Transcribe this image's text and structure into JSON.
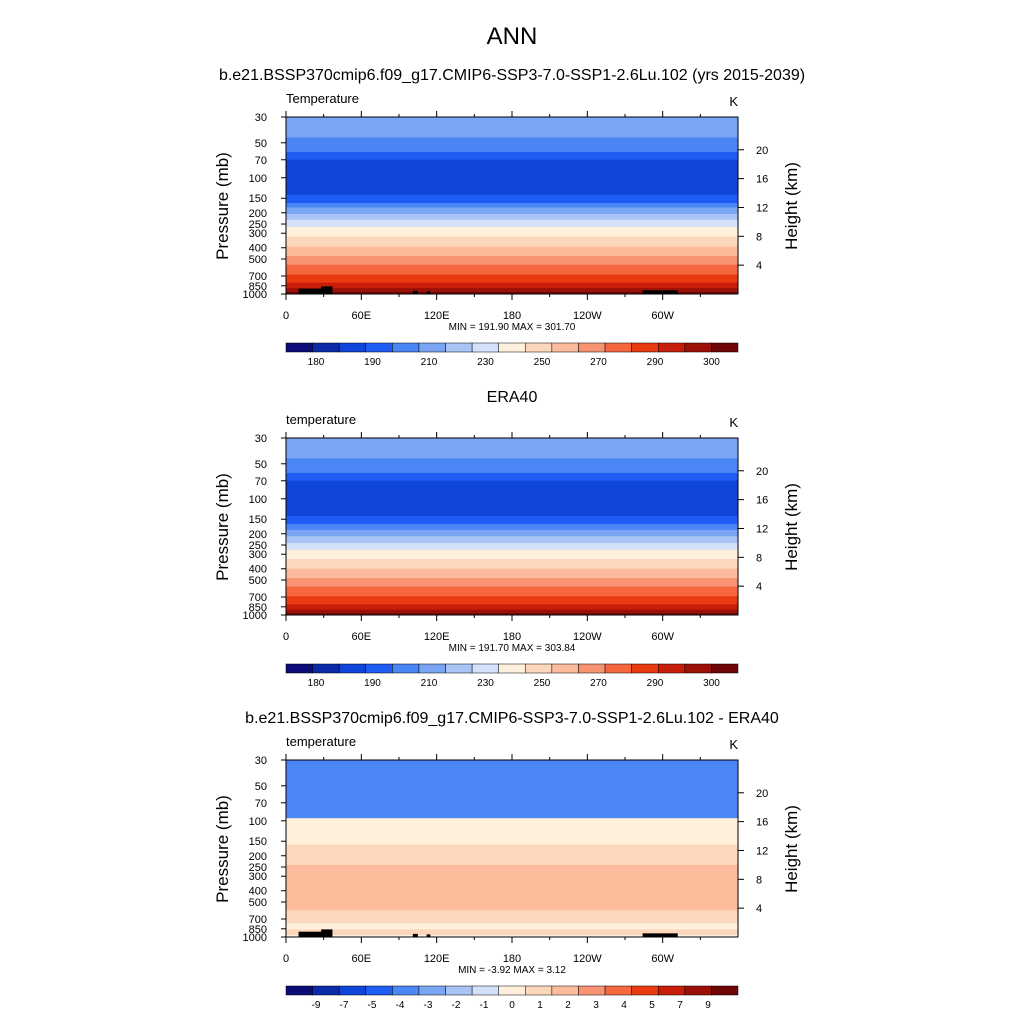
{
  "figure": {
    "title": "ANN",
    "subtitle": "b.e21.BSSP370cmip6.f09_g17.CMIP6-SSP3-7.0-SSP1-2.6Lu.102 (yrs 2015-2039)"
  },
  "chart_data": [
    {
      "type": "heatmap",
      "panel_title": "",
      "left_label": "Temperature",
      "units": "K",
      "ylabel": "Pressure (mb)",
      "ylabel_right": "Height (km)",
      "x_ticks": [
        "0",
        "60E",
        "120E",
        "180",
        "120W",
        "60W"
      ],
      "x_tick_values": [
        0,
        60,
        120,
        180,
        240,
        300
      ],
      "xlim": [
        0,
        360
      ],
      "y_ticks": [
        "30",
        "50",
        "70",
        "100",
        "150",
        "200",
        "250",
        "300",
        "400",
        "500",
        "700",
        "850",
        "1000"
      ],
      "y_tick_values": [
        30,
        50,
        70,
        100,
        150,
        200,
        250,
        300,
        400,
        500,
        700,
        850,
        1000
      ],
      "ylim": [
        1000,
        30
      ],
      "height_ticks": [
        "20",
        "16",
        "12",
        "8",
        "4"
      ],
      "height_values": [
        20,
        16,
        12,
        8,
        4
      ],
      "stats": "MIN = 191.90  MAX = 301.70",
      "colorbar_labels": [
        "180",
        "190",
        "210",
        "230",
        "250",
        "270",
        "290",
        "300"
      ],
      "colorbar_colors": [
        "#0c0c78",
        "#0b2ba8",
        "#0f45d8",
        "#1f5cf3",
        "#4a86f4",
        "#7aa5f2",
        "#a9c4f4",
        "#d3e2fa",
        "#fff0dc",
        "#fdd7bc",
        "#fcbc9c",
        "#f99473",
        "#f5683f",
        "#e93b0f",
        "#c71d09",
        "#9b1108",
        "#6f0707"
      ],
      "levels": [
        {
          "p": 30,
          "c": 5
        },
        {
          "p": 45,
          "c": 4
        },
        {
          "p": 60,
          "c": 3
        },
        {
          "p": 70,
          "c": 2
        },
        {
          "p": 115,
          "c": 2
        },
        {
          "p": 140,
          "c": 3
        },
        {
          "p": 165,
          "c": 4
        },
        {
          "p": 180,
          "c": 5
        },
        {
          "p": 205,
          "c": 6
        },
        {
          "p": 230,
          "c": 7
        },
        {
          "p": 265,
          "c": 8
        },
        {
          "p": 320,
          "c": 9
        },
        {
          "p": 390,
          "c": 10
        },
        {
          "p": 470,
          "c": 11
        },
        {
          "p": 560,
          "c": 12
        },
        {
          "p": 680,
          "c": 13
        },
        {
          "p": 800,
          "c": 14
        },
        {
          "p": 890,
          "c": 15
        },
        {
          "p": 960,
          "c": 16
        }
      ],
      "topography": true
    },
    {
      "type": "heatmap",
      "panel_title": "ERA40",
      "left_label": "temperature",
      "units": "K",
      "ylabel": "Pressure (mb)",
      "ylabel_right": "Height (km)",
      "x_ticks": [
        "0",
        "60E",
        "120E",
        "180",
        "120W",
        "60W"
      ],
      "x_tick_values": [
        0,
        60,
        120,
        180,
        240,
        300
      ],
      "xlim": [
        0,
        360
      ],
      "y_ticks": [
        "30",
        "50",
        "70",
        "100",
        "150",
        "200",
        "250",
        "300",
        "400",
        "500",
        "700",
        "850",
        "1000"
      ],
      "y_tick_values": [
        30,
        50,
        70,
        100,
        150,
        200,
        250,
        300,
        400,
        500,
        700,
        850,
        1000
      ],
      "ylim": [
        1000,
        30
      ],
      "height_ticks": [
        "20",
        "16",
        "12",
        "8",
        "4"
      ],
      "height_values": [
        20,
        16,
        12,
        8,
        4
      ],
      "stats": "MIN = 191.70  MAX = 303.84",
      "colorbar_labels": [
        "180",
        "190",
        "210",
        "230",
        "250",
        "270",
        "290",
        "300"
      ],
      "colorbar_colors": [
        "#0c0c78",
        "#0b2ba8",
        "#0f45d8",
        "#1f5cf3",
        "#4a86f4",
        "#7aa5f2",
        "#a9c4f4",
        "#d3e2fa",
        "#fff0dc",
        "#fdd7bc",
        "#fcbc9c",
        "#f99473",
        "#f5683f",
        "#e93b0f",
        "#c71d09",
        "#9b1108",
        "#6f0707"
      ],
      "levels": [
        {
          "p": 30,
          "c": 5
        },
        {
          "p": 45,
          "c": 4
        },
        {
          "p": 60,
          "c": 3
        },
        {
          "p": 70,
          "c": 2
        },
        {
          "p": 115,
          "c": 2
        },
        {
          "p": 140,
          "c": 3
        },
        {
          "p": 165,
          "c": 4
        },
        {
          "p": 185,
          "c": 5
        },
        {
          "p": 210,
          "c": 6
        },
        {
          "p": 240,
          "c": 7
        },
        {
          "p": 275,
          "c": 8
        },
        {
          "p": 330,
          "c": 9
        },
        {
          "p": 400,
          "c": 10
        },
        {
          "p": 480,
          "c": 11
        },
        {
          "p": 570,
          "c": 12
        },
        {
          "p": 690,
          "c": 13
        },
        {
          "p": 810,
          "c": 14
        },
        {
          "p": 900,
          "c": 15
        },
        {
          "p": 965,
          "c": 16
        }
      ],
      "topography": false
    },
    {
      "type": "heatmap",
      "panel_title": "b.e21.BSSP370cmip6.f09_g17.CMIP6-SSP3-7.0-SSP1-2.6Lu.102 - ERA40",
      "left_label": "temperature",
      "units": "K",
      "ylabel": "Pressure (mb)",
      "ylabel_right": "Height (km)",
      "x_ticks": [
        "0",
        "60E",
        "120E",
        "180",
        "120W",
        "60W"
      ],
      "x_tick_values": [
        0,
        60,
        120,
        180,
        240,
        300
      ],
      "xlim": [
        0,
        360
      ],
      "y_ticks": [
        "30",
        "50",
        "70",
        "100",
        "150",
        "200",
        "250",
        "300",
        "400",
        "500",
        "700",
        "850",
        "1000"
      ],
      "y_tick_values": [
        30,
        50,
        70,
        100,
        150,
        200,
        250,
        300,
        400,
        500,
        700,
        850,
        1000
      ],
      "ylim": [
        1000,
        30
      ],
      "height_ticks": [
        "20",
        "16",
        "12",
        "8",
        "4"
      ],
      "height_values": [
        20,
        16,
        12,
        8,
        4
      ],
      "stats": "MIN =  -3.92  MAX =   3.12",
      "colorbar_labels": [
        "-9",
        "-7",
        "-5",
        "-4",
        "-3",
        "-2",
        "-1",
        "0",
        "1",
        "2",
        "3",
        "4",
        "5",
        "7",
        "9"
      ],
      "colorbar_colors": [
        "#0c0c78",
        "#0b2ba8",
        "#0f45d8",
        "#1f5cf3",
        "#4a86f4",
        "#7aa5f2",
        "#a9c4f4",
        "#d3e2fa",
        "#fff0dc",
        "#fdd7bc",
        "#fcbc9c",
        "#f99473",
        "#f5683f",
        "#e93b0f",
        "#c71d09",
        "#9b1108",
        "#6f0707"
      ],
      "levels": [
        {
          "p": 30,
          "c": 4
        },
        {
          "p": 95,
          "c": 8
        },
        {
          "p": 160,
          "c": 9
        },
        {
          "p": 240,
          "c": 10
        },
        {
          "p": 590,
          "c": 9
        },
        {
          "p": 760,
          "c": 8
        },
        {
          "p": 860,
          "c": 9
        },
        {
          "p": 960,
          "c": 8
        }
      ],
      "topography": true
    }
  ]
}
